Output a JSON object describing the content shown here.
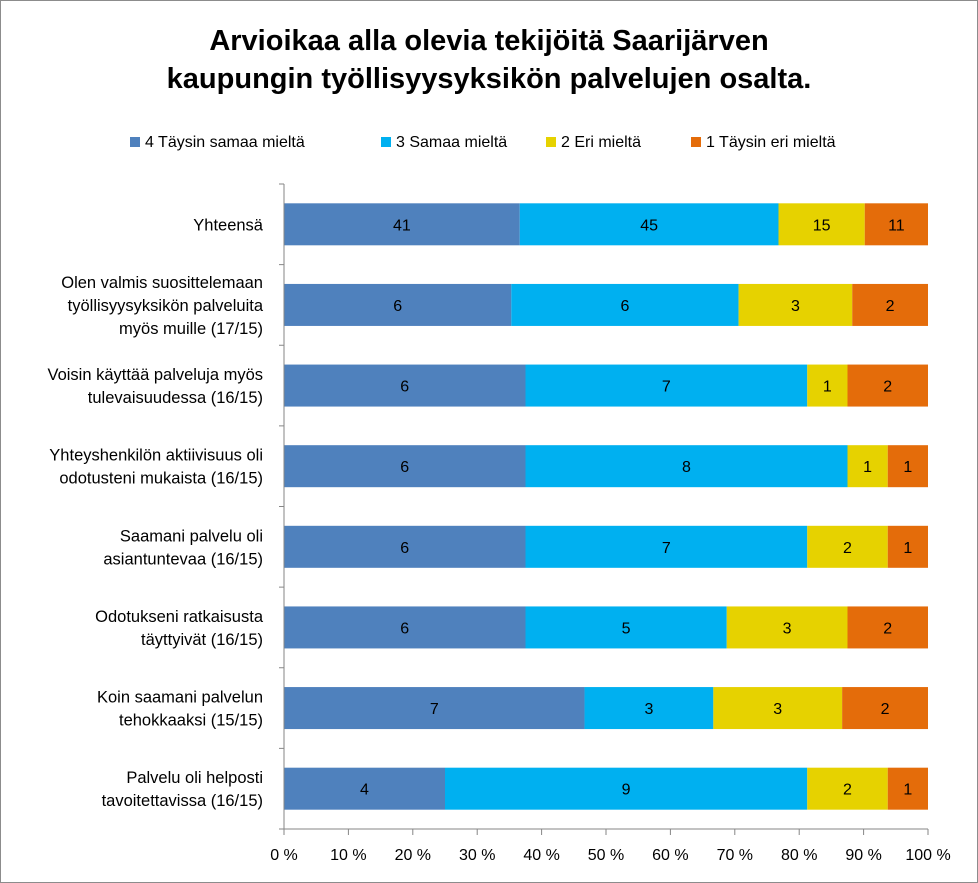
{
  "chart_data": {
    "type": "bar",
    "orientation": "horizontal",
    "stacking": "percent",
    "title": "Arvioikaa alla olevia tekijöitä Saarijärven\nkaupungin työllisyysyksikön palvelujen osalta.",
    "categories": [
      "Yhteensä",
      "Olen valmis suosittelemaan työllisyysyksikön palveluita myös muille (17/15)",
      "Voisin käyttää palveluja myös tulevaisuudessa (16/15)",
      "Yhteyshenkilön aktiivisuus oli odotusteni mukaista (16/15)",
      "Saamani palvelu oli asiantuntevaa (16/15)",
      "Odotukseni ratkaisusta täyttyivät (16/15)",
      "Koin saamani palvelun tehokkaaksi  (15/15)",
      "Palvelu oli helposti tavoitettavissa  (16/15)"
    ],
    "category_lines": [
      [
        "Yhteensä"
      ],
      [
        "Olen valmis suosittelemaan",
        "työllisyysyksikön palveluita",
        "myös muille (17/15)"
      ],
      [
        "Voisin käyttää palveluja myös",
        "tulevaisuudessa (16/15)"
      ],
      [
        "Yhteyshenkilön aktiivisuus oli",
        "odotusteni mukaista (16/15)"
      ],
      [
        "Saamani palvelu oli",
        "asiantuntevaa (16/15)"
      ],
      [
        "Odotukseni ratkaisusta",
        "täyttyivät (16/15)"
      ],
      [
        "Koin saamani palvelun",
        "tehokkaaksi  (15/15)"
      ],
      [
        "Palvelu oli helposti",
        "tavoitettavissa  (16/15)"
      ]
    ],
    "series": [
      {
        "name": "4 Täysin samaa mieltä",
        "color": "#4f81bd",
        "values": [
          41,
          6,
          6,
          6,
          6,
          6,
          7,
          4
        ]
      },
      {
        "name": "3 Samaa mieltä",
        "color": "#00b0f0",
        "values": [
          45,
          6,
          7,
          8,
          7,
          5,
          3,
          9
        ]
      },
      {
        "name": "2 Eri mieltä",
        "color": "#e6d200",
        "values": [
          15,
          3,
          1,
          1,
          2,
          3,
          3,
          2
        ]
      },
      {
        "name": "1 Täysin eri mieltä",
        "color": "#e46c0a",
        "values": [
          11,
          2,
          2,
          1,
          1,
          2,
          2,
          1
        ]
      }
    ],
    "x_ticks": [
      "0 %",
      "10 %",
      "20 %",
      "30 %",
      "40 %",
      "50 %",
      "60 %",
      "70 %",
      "80 %",
      "90 %",
      "100 %"
    ],
    "xlim": [
      0,
      100
    ],
    "grid": false,
    "legend_position": "top"
  }
}
